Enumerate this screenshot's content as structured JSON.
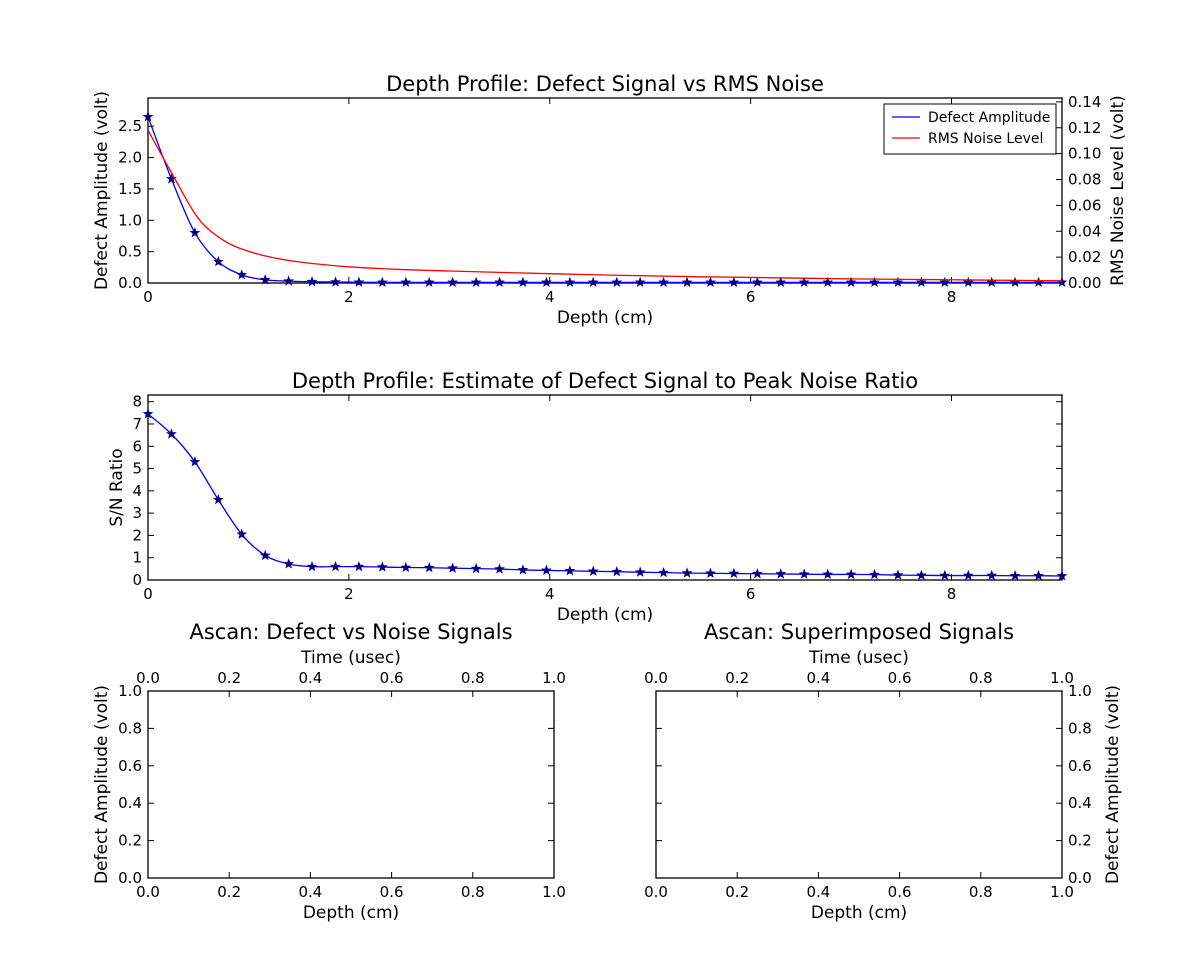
{
  "chart_data": [
    {
      "type": "line",
      "title": "Depth Profile: Defect Signal vs RMS Noise",
      "xlabel": "Depth (cm)",
      "ylabel": "Defect Amplitude (volt)",
      "y2label": "RMS Noise Level (volt)",
      "xlim": [
        0,
        9.1
      ],
      "ylim": [
        0,
        2.95
      ],
      "y2lim": [
        0,
        0.143
      ],
      "xticks": [
        0,
        2,
        4,
        6,
        8
      ],
      "yticks": [
        0.0,
        0.5,
        1.0,
        1.5,
        2.0,
        2.5
      ],
      "y2ticks": [
        0.0,
        0.02,
        0.04,
        0.06,
        0.08,
        0.1,
        0.12,
        0.14
      ],
      "legend": "top-right",
      "grid": false,
      "series": [
        {
          "name": "Defect Amplitude",
          "axis": "left",
          "color": "#0000ff",
          "marker": "star",
          "x": [
            0,
            0.233,
            0.467,
            0.7,
            0.933,
            1.167,
            1.4,
            1.633,
            1.867,
            2.1,
            2.333,
            2.567,
            2.8,
            3.033,
            3.267,
            3.5,
            3.733,
            3.967,
            4.2,
            4.433,
            4.667,
            4.9,
            5.133,
            5.367,
            5.6,
            5.833,
            6.067,
            6.3,
            6.533,
            6.767,
            7.0,
            7.233,
            7.467,
            7.7,
            7.933,
            8.167,
            8.4,
            8.633,
            8.867,
            9.1
          ],
          "y": [
            2.65,
            1.66,
            0.8,
            0.34,
            0.13,
            0.05,
            0.03,
            0.02,
            0.015,
            0.012,
            0.01,
            0.01,
            0.01,
            0.01,
            0.01,
            0.01,
            0.01,
            0.01,
            0.01,
            0.01,
            0.01,
            0.01,
            0.01,
            0.01,
            0.01,
            0.01,
            0.01,
            0.01,
            0.01,
            0.01,
            0.01,
            0.01,
            0.01,
            0.01,
            0.01,
            0.01,
            0.01,
            0.01,
            0.01,
            0.01
          ]
        },
        {
          "name": "RMS Noise Level",
          "axis": "right",
          "color": "#ff0000",
          "marker": "none",
          "x": [
            0,
            0.25,
            0.5,
            0.75,
            1.0,
            1.25,
            1.5,
            1.75,
            2.0,
            2.5,
            3.0,
            3.5,
            4.0,
            4.5,
            5.0,
            5.5,
            6.0,
            6.5,
            7.0,
            7.5,
            8.0,
            8.5,
            9.1
          ],
          "y": [
            0.118,
            0.083,
            0.05,
            0.033,
            0.0245,
            0.0195,
            0.0163,
            0.0142,
            0.0125,
            0.0105,
            0.0093,
            0.0082,
            0.0072,
            0.0063,
            0.0055,
            0.0048,
            0.0043,
            0.0037,
            0.0032,
            0.0028,
            0.0025,
            0.0021,
            0.0017
          ]
        }
      ]
    },
    {
      "type": "line",
      "title": "Depth Profile: Estimate of Defect Signal to Peak Noise Ratio",
      "xlabel": "Depth (cm)",
      "ylabel": "S/N Ratio",
      "xlim": [
        0,
        9.1
      ],
      "ylim": [
        0,
        8.3
      ],
      "xticks": [
        0,
        2,
        4,
        6,
        8
      ],
      "yticks": [
        0,
        1,
        2,
        3,
        4,
        5,
        6,
        7,
        8
      ],
      "grid": false,
      "series": [
        {
          "color": "#0000ff",
          "marker": "star",
          "x": [
            0,
            0.233,
            0.467,
            0.7,
            0.933,
            1.167,
            1.4,
            1.633,
            1.867,
            2.1,
            2.333,
            2.567,
            2.8,
            3.033,
            3.267,
            3.5,
            3.733,
            3.967,
            4.2,
            4.433,
            4.667,
            4.9,
            5.133,
            5.367,
            5.6,
            5.833,
            6.067,
            6.3,
            6.533,
            6.767,
            7.0,
            7.233,
            7.467,
            7.7,
            7.933,
            8.167,
            8.4,
            8.633,
            8.867,
            9.1
          ],
          "y": [
            7.45,
            6.55,
            5.3,
            3.6,
            2.05,
            1.1,
            0.72,
            0.6,
            0.6,
            0.6,
            0.58,
            0.56,
            0.55,
            0.53,
            0.51,
            0.49,
            0.45,
            0.43,
            0.41,
            0.39,
            0.37,
            0.35,
            0.33,
            0.31,
            0.3,
            0.29,
            0.28,
            0.27,
            0.26,
            0.25,
            0.25,
            0.24,
            0.22,
            0.21,
            0.2,
            0.2,
            0.2,
            0.19,
            0.19,
            0.18
          ]
        }
      ]
    },
    {
      "type": "line",
      "title": "Ascan: Defect vs Noise Signals",
      "xlabel": "Depth (cm)",
      "x2label": "Time (usec)",
      "ylabel": "Defect Amplitude (volt)",
      "xlim": [
        0,
        1
      ],
      "ylim": [
        0,
        1
      ],
      "xticks": [
        0.0,
        0.2,
        0.4,
        0.6,
        0.8,
        1.0
      ],
      "x2ticks": [
        0.0,
        0.2,
        0.4,
        0.6,
        0.8,
        1.0
      ],
      "yticks": [
        0.0,
        0.2,
        0.4,
        0.6,
        0.8,
        1.0
      ],
      "ylabel_side": "left",
      "grid": false,
      "series": []
    },
    {
      "type": "line",
      "title": "Ascan: Superimposed Signals",
      "xlabel": "Depth (cm)",
      "x2label": "Time (usec)",
      "ylabel": "Defect Amplitude (volt)",
      "xlim": [
        0,
        1
      ],
      "ylim": [
        0,
        1
      ],
      "xticks": [
        0.0,
        0.2,
        0.4,
        0.6,
        0.8,
        1.0
      ],
      "x2ticks": [
        0.0,
        0.2,
        0.4,
        0.6,
        0.8,
        1.0
      ],
      "yticks": [
        0.0,
        0.2,
        0.4,
        0.6,
        0.8,
        1.0
      ],
      "ylabel_side": "right",
      "grid": false,
      "series": []
    }
  ]
}
